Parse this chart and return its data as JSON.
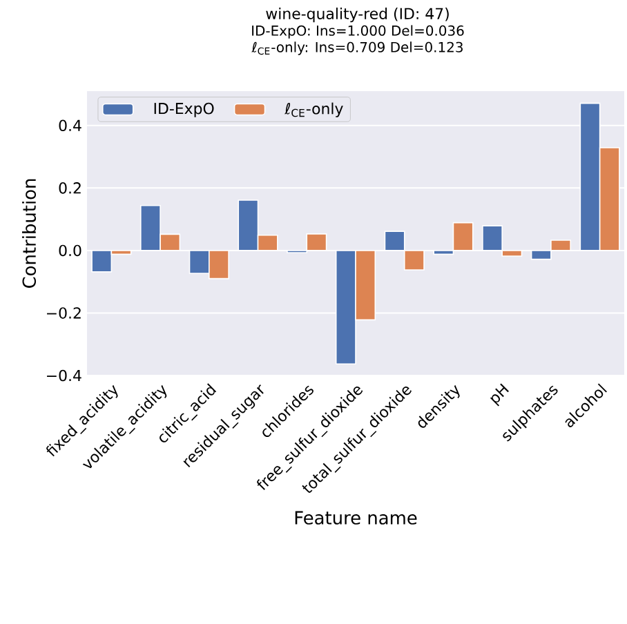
{
  "chart_data": {
    "type": "bar",
    "title": "wine-quality-red (ID: 47)",
    "subtitle": "ID-ExpO: Ins=1.000  Del=0.036",
    "annotations": [
      "ℓ$_{CE}$-only: Ins=0.709  Del=0.123"
    ],
    "xlabel": "Feature name",
    "ylabel": "Contribution",
    "categories": [
      "fixed_acidity",
      "volatile_acidity",
      "citric_acid",
      "residual_sugar",
      "chlorides",
      "free_sulfur_dioxide",
      "total_sulfur_dioxide",
      "density",
      "pH",
      "sulphates",
      "alcohol"
    ],
    "series": [
      {
        "name": "ID-ExpO",
        "color": "#4c72b0",
        "values": [
          -0.068,
          0.144,
          -0.073,
          0.161,
          -0.007,
          -0.363,
          0.061,
          -0.012,
          0.079,
          -0.028,
          0.471
        ]
      },
      {
        "name": "ℓ$_{CE}$-only",
        "color": "#dd8452",
        "values": [
          -0.012,
          0.052,
          -0.09,
          0.049,
          0.053,
          -0.222,
          -0.062,
          0.089,
          -0.018,
          0.033,
          0.329
        ]
      }
    ],
    "ylim": [
      -0.4,
      0.51
    ],
    "yticks": [
      {
        "value": -0.4,
        "label": "−0.4"
      },
      {
        "value": -0.2,
        "label": "−0.2"
      },
      {
        "value": 0.0,
        "label": "0.0"
      },
      {
        "value": 0.2,
        "label": "0.2"
      },
      {
        "value": 0.4,
        "label": "0.4"
      }
    ],
    "grid": "y",
    "legend": "top left"
  }
}
